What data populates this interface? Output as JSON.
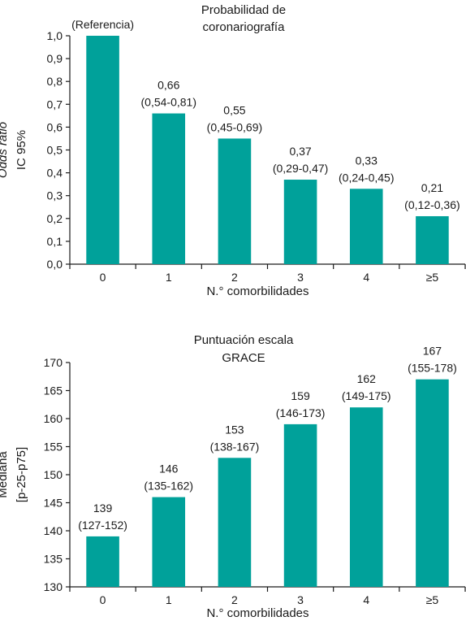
{
  "colors": {
    "bar": "#00A19A",
    "axis": "#1a1a1a",
    "text": "#1a1a1a"
  },
  "chart_data": [
    {
      "type": "bar",
      "title_lines": [
        "Probabilidad de",
        "coronariografía"
      ],
      "xlabel": "N.° comorbilidades",
      "ylabel_lines": [
        "Odds ratio",
        "IC 95%"
      ],
      "categories": [
        "0",
        "1",
        "2",
        "3",
        "4",
        "≥5"
      ],
      "values": [
        1.0,
        0.66,
        0.55,
        0.37,
        0.33,
        0.21
      ],
      "label_lines": [
        [
          "(Referencia)"
        ],
        [
          "0,66",
          "(0,54-0,81)"
        ],
        [
          "0,55",
          "(0,45-0,69)"
        ],
        [
          "0,37",
          "(0,29-0,47)"
        ],
        [
          "0,33",
          "(0,24-0,45)"
        ],
        [
          "0,21",
          "(0,12-0,36)"
        ]
      ],
      "ylim": [
        0,
        1.0
      ],
      "yticks": [
        0,
        0.1,
        0.2,
        0.3,
        0.4,
        0.5,
        0.6,
        0.7,
        0.8,
        0.9,
        1.0
      ],
      "ytick_labels": [
        "0,0",
        "0,1",
        "0,2",
        "0,3",
        "0,4",
        "0,5",
        "0,6",
        "0,7",
        "0,8",
        "0,9",
        "1,0"
      ],
      "grid": false,
      "legend": "none"
    },
    {
      "type": "bar",
      "title_lines": [
        "Puntuación escala",
        "GRACE"
      ],
      "xlabel": "N.° comorbilidades",
      "ylabel_lines": [
        "Mediana",
        "[p-25-p75]"
      ],
      "categories": [
        "0",
        "1",
        "2",
        "3",
        "4",
        "≥5"
      ],
      "values": [
        139,
        146,
        153,
        159,
        162,
        167
      ],
      "label_lines": [
        [
          "139",
          "(127-152)"
        ],
        [
          "146",
          "(135-162)"
        ],
        [
          "153",
          "(138-167)"
        ],
        [
          "159",
          "(146-173)"
        ],
        [
          "162",
          "(149-175)"
        ],
        [
          "167",
          "(155-178)"
        ]
      ],
      "ylim": [
        130,
        170
      ],
      "yticks": [
        130,
        135,
        140,
        145,
        150,
        155,
        160,
        165,
        170
      ],
      "ytick_labels": [
        "130",
        "135",
        "140",
        "145",
        "150",
        "155",
        "160",
        "165",
        "170"
      ],
      "grid": false,
      "legend": "none"
    }
  ]
}
